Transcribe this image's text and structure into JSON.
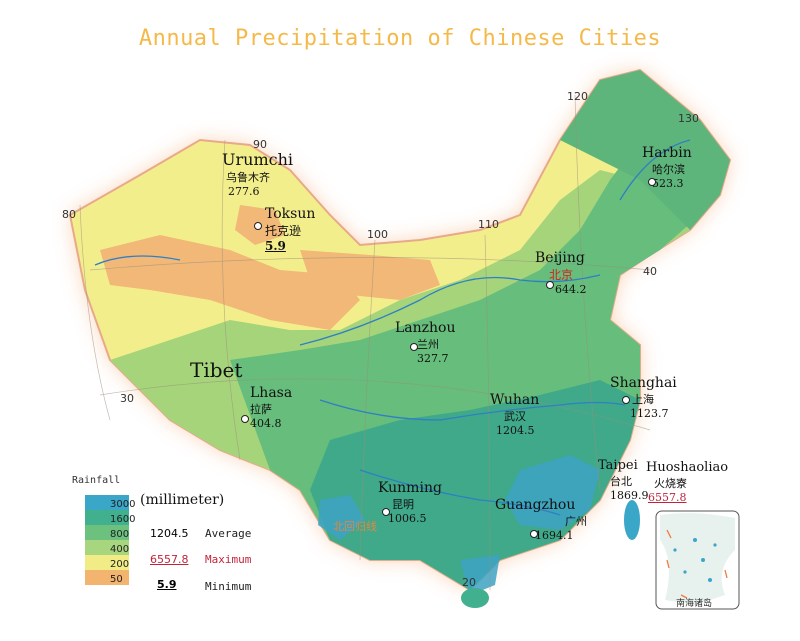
{
  "title": "Annual Precipitation of Chinese Cities",
  "region_label": "Tibet",
  "cities": [
    {
      "en": "Urumchi",
      "zh": "乌鲁木齐",
      "value": "277.6",
      "kind": "average"
    },
    {
      "en": "Toksun",
      "zh": "托克逊",
      "value": "5.9",
      "kind": "minimum"
    },
    {
      "en": "Harbin",
      "zh": "哈尔滨",
      "value": "523.3",
      "kind": "average"
    },
    {
      "en": "Beijing",
      "zh": "北京",
      "value": "644.2",
      "kind": "average"
    },
    {
      "en": "Lanzhou",
      "zh": "兰州",
      "value": "327.7",
      "kind": "average"
    },
    {
      "en": "Lhasa",
      "zh": "拉萨",
      "value": "404.8",
      "kind": "average"
    },
    {
      "en": "Shanghai",
      "zh": "上海",
      "value": "1123.7",
      "kind": "average"
    },
    {
      "en": "Wuhan",
      "zh": "武汉",
      "value": "1204.5",
      "kind": "average"
    },
    {
      "en": "Kunming",
      "zh": "昆明",
      "value": "1006.5",
      "kind": "average"
    },
    {
      "en": "Guangzhou",
      "zh": "广州",
      "value": "1694.1",
      "kind": "average"
    },
    {
      "en": "Taipei",
      "zh": "台北",
      "value": "1869.9",
      "kind": "average"
    },
    {
      "en": "Huoshaoliao",
      "zh": "火烧寮",
      "value": "6557.8",
      "kind": "maximum"
    }
  ],
  "legend": {
    "title": "Rainfall",
    "unit": "(millimeter)",
    "classes": [
      {
        "label": "3000",
        "color": "#3aa6c8"
      },
      {
        "label": "1600",
        "color": "#41b08f"
      },
      {
        "label": "800",
        "color": "#6cc17f"
      },
      {
        "label": "400",
        "color": "#a7d67e"
      },
      {
        "label": "200",
        "color": "#f1ec85"
      },
      {
        "label": "50",
        "color": "#f2b46e"
      }
    ],
    "samples": [
      {
        "value": "1204.5",
        "text": "Average"
      },
      {
        "value": "6557.8",
        "text": "Maximum"
      },
      {
        "value": "5.9",
        "text": "Minimum"
      }
    ]
  },
  "grid_labels": {
    "longitudes": [
      "80",
      "90",
      "100",
      "110",
      "120",
      "130"
    ],
    "latitudes": [
      "20",
      "30",
      "40"
    ],
    "tropic": "北回归线",
    "islands": "南海诸岛"
  },
  "colors": {
    "title": "#f5b94a",
    "maximum": "#c0243a",
    "beijing": "#d62020"
  }
}
